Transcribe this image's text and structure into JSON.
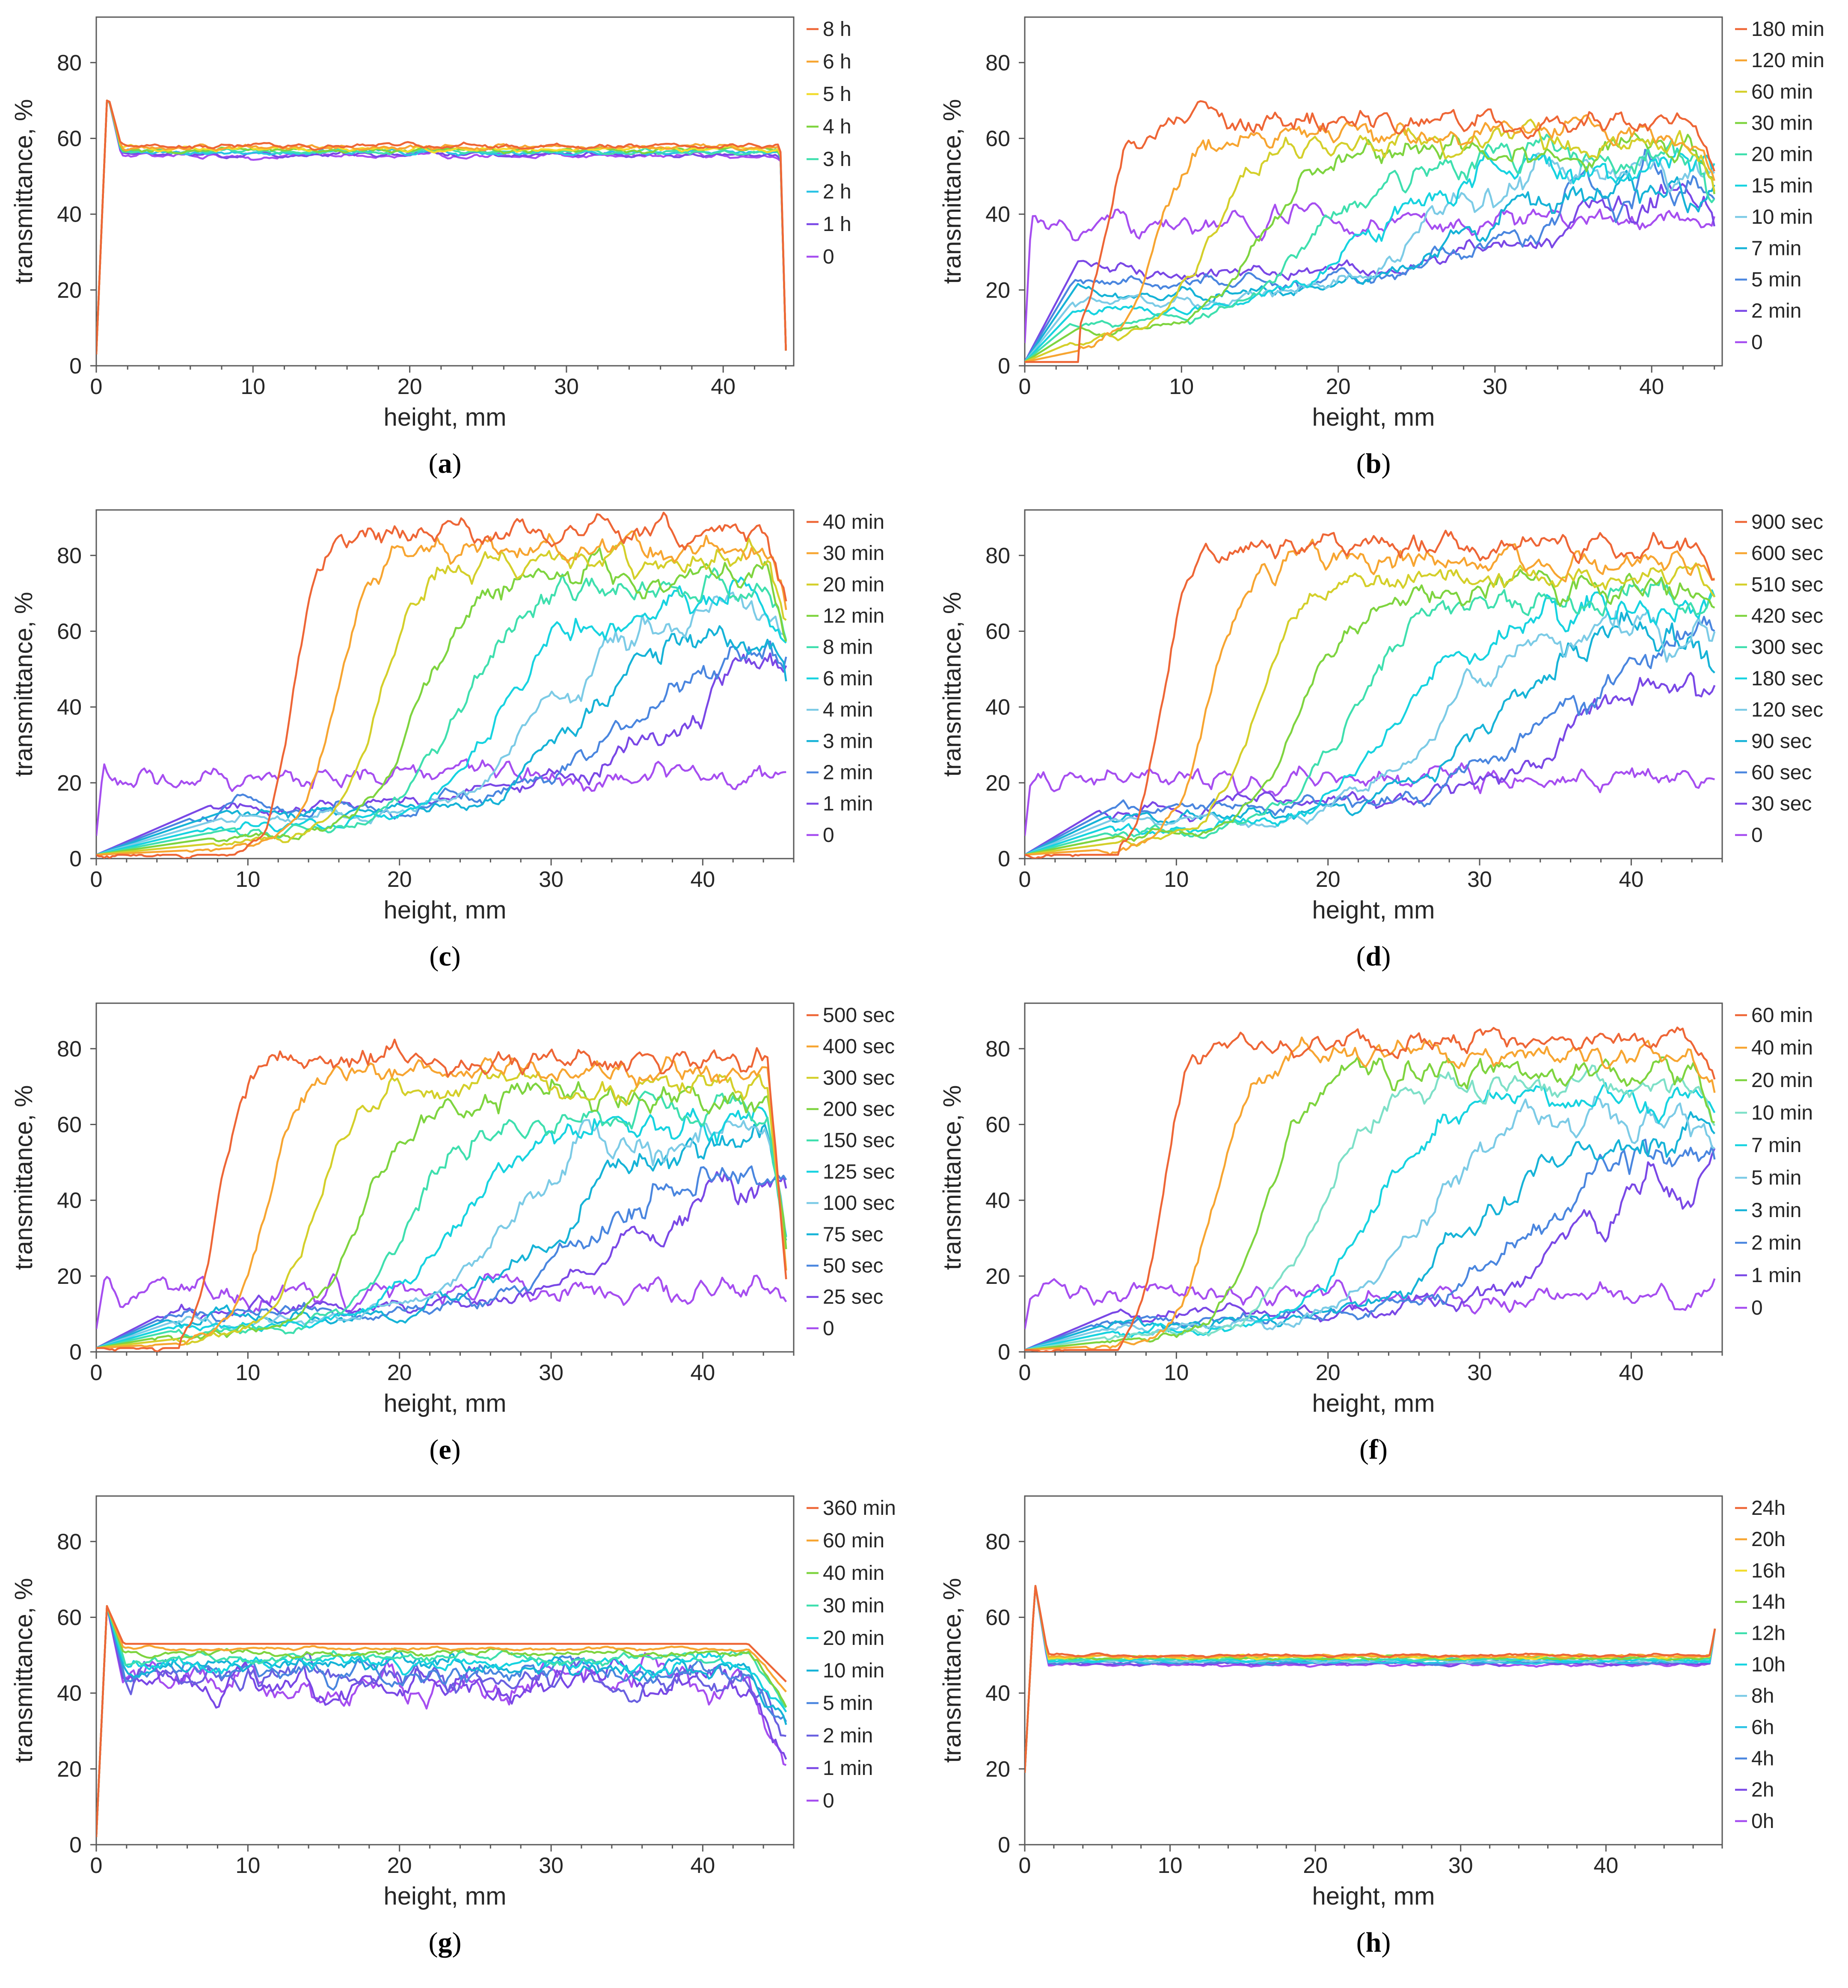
{
  "chart_data": [
    {
      "panel": "a",
      "caption": {
        "open": "(",
        "letter": "a",
        "close": ")"
      },
      "type": "line",
      "xlabel": "height, mm",
      "ylabel": "transmittance, %",
      "xlim": [
        0,
        44.5
      ],
      "ylim": [
        0,
        92
      ],
      "xticks": [
        "0",
        "10",
        "20",
        "30",
        "40"
      ],
      "yticks": [
        "0",
        "20",
        "40",
        "60",
        "80"
      ],
      "profile": {
        "kind": "flat",
        "H": 44,
        "peak": 72,
        "plateau": 58,
        "noise": 0.8
      },
      "series": [
        {
          "name": "8 h",
          "color": "#ee6636"
        },
        {
          "name": "6 h",
          "color": "#f7a531"
        },
        {
          "name": "5 h",
          "color": "#f2dc2c"
        },
        {
          "name": "4 h",
          "color": "#7ed43f"
        },
        {
          "name": "3 h",
          "color": "#3fdfae"
        },
        {
          "name": "2 h",
          "color": "#29c3e5"
        },
        {
          "name": "1 h",
          "color": "#7a48e6"
        },
        {
          "name": "0",
          "color": "#a64ef0"
        }
      ]
    },
    {
      "panel": "b",
      "caption": {
        "open": "(",
        "letter": "b",
        "close": ")"
      },
      "type": "line",
      "xlabel": "height, mm",
      "ylabel": "transmittance, %",
      "xlim": [
        0,
        44.5
      ],
      "ylim": [
        0,
        92
      ],
      "xticks": [
        "0",
        "10",
        "20",
        "30",
        "40"
      ],
      "yticks": [
        "0",
        "20",
        "40",
        "60",
        "80"
      ],
      "profile": {
        "kind": "settling",
        "H": 44,
        "top": 64,
        "low": 38,
        "noise": 4,
        "bottomFloor": 1,
        "topDrop": 12
      },
      "series": [
        {
          "name": "180 min",
          "color": "#ee6636"
        },
        {
          "name": "120 min",
          "color": "#f7a531"
        },
        {
          "name": "60 min",
          "color": "#d4cf2a"
        },
        {
          "name": "30 min",
          "color": "#7ed43f"
        },
        {
          "name": "20 min",
          "color": "#3fdfae"
        },
        {
          "name": "15 min",
          "color": "#17d3e0"
        },
        {
          "name": "10 min",
          "color": "#7ccbe6"
        },
        {
          "name": "7 min",
          "color": "#16b3d7"
        },
        {
          "name": "5 min",
          "color": "#4a86df"
        },
        {
          "name": "2 min",
          "color": "#7a48e6"
        },
        {
          "name": "0",
          "color": "#a64ef0"
        }
      ]
    },
    {
      "panel": "c",
      "caption": {
        "open": "(",
        "letter": "c",
        "close": ")"
      },
      "type": "line",
      "xlabel": "height, mm",
      "ylabel": "transmittance, %",
      "xlim": [
        0,
        46
      ],
      "ylim": [
        0,
        92
      ],
      "xticks": [
        "0",
        "10",
        "20",
        "30",
        "40"
      ],
      "yticks": [
        "0",
        "20",
        "40",
        "60",
        "80"
      ],
      "profile": {
        "kind": "settling",
        "H": 45.5,
        "top": 86,
        "low": 22,
        "noise": 4,
        "bottomFloor": 1,
        "topDrop": 20,
        "frontStart": 13
      },
      "series": [
        {
          "name": "40 min",
          "color": "#ee6636"
        },
        {
          "name": "30 min",
          "color": "#f7a531"
        },
        {
          "name": "20 min",
          "color": "#d4cf2a"
        },
        {
          "name": "12 min",
          "color": "#7ed43f"
        },
        {
          "name": "8 min",
          "color": "#3fdfae"
        },
        {
          "name": "6 min",
          "color": "#17d3e0"
        },
        {
          "name": "4 min",
          "color": "#7ccbe6"
        },
        {
          "name": "3 min",
          "color": "#16b3d7"
        },
        {
          "name": "2 min",
          "color": "#4a86df"
        },
        {
          "name": "1 min",
          "color": "#7a48e6"
        },
        {
          "name": "0",
          "color": "#a64ef0"
        }
      ]
    },
    {
      "panel": "d",
      "caption": {
        "open": "(",
        "letter": "d",
        "close": ")"
      },
      "type": "line",
      "xlabel": "height, mm",
      "ylabel": "transmittance, %",
      "xlim": [
        0,
        46
      ],
      "ylim": [
        0,
        92
      ],
      "xticks": [
        "0",
        "10",
        "20",
        "30",
        "40"
      ],
      "yticks": [
        "0",
        "20",
        "40",
        "60",
        "80"
      ],
      "profile": {
        "kind": "settling",
        "H": 45.5,
        "top": 82,
        "low": 21,
        "noise": 4,
        "bottomFloor": 1,
        "topDrop": 8,
        "frontStart": 9
      },
      "series": [
        {
          "name": "900 sec",
          "color": "#ee6636"
        },
        {
          "name": "600 sec",
          "color": "#f7a531"
        },
        {
          "name": "510 sec",
          "color": "#d4cf2a"
        },
        {
          "name": "420 sec",
          "color": "#7ed43f"
        },
        {
          "name": "300 sec",
          "color": "#3fdfae"
        },
        {
          "name": "180 sec",
          "color": "#17d3e0"
        },
        {
          "name": "120 sec",
          "color": "#7ccbe6"
        },
        {
          "name": "90 sec",
          "color": "#16b3d7"
        },
        {
          "name": "60 sec",
          "color": "#4a86df"
        },
        {
          "name": "30 sec",
          "color": "#7a48e6"
        },
        {
          "name": "0",
          "color": "#a64ef0"
        }
      ]
    },
    {
      "panel": "e",
      "caption": {
        "open": "(",
        "letter": "e",
        "close": ")"
      },
      "type": "line",
      "xlabel": "height, mm",
      "ylabel": "transmittance, %",
      "xlim": [
        0,
        46
      ],
      "ylim": [
        0,
        92
      ],
      "xticks": [
        "0",
        "10",
        "20",
        "30",
        "40"
      ],
      "yticks": [
        "0",
        "20",
        "40",
        "60",
        "80"
      ],
      "profile": {
        "kind": "settling",
        "H": 45.5,
        "top": 77,
        "low": 16,
        "noise": 4,
        "bottomFloor": 1,
        "topDrop": 60,
        "frontStart": 8
      },
      "series": [
        {
          "name": "500 sec",
          "color": "#ee6636"
        },
        {
          "name": "400 sec",
          "color": "#f7a531"
        },
        {
          "name": "300 sec",
          "color": "#d4cf2a"
        },
        {
          "name": "200 sec",
          "color": "#7ed43f"
        },
        {
          "name": "150 sec",
          "color": "#3fdfae"
        },
        {
          "name": "125 sec",
          "color": "#17d3e0"
        },
        {
          "name": "100 sec",
          "color": "#7ccbe6"
        },
        {
          "name": "75 sec",
          "color": "#16b3d7"
        },
        {
          "name": "50 sec",
          "color": "#4a86df"
        },
        {
          "name": "25 sec",
          "color": "#7a48e6"
        },
        {
          "name": "0",
          "color": "#a64ef0"
        }
      ]
    },
    {
      "panel": "f",
      "caption": {
        "open": "(",
        "letter": "f",
        "close": ")"
      },
      "type": "line",
      "xlabel": "height, mm",
      "ylabel": "transmittance, %",
      "xlim": [
        0,
        46
      ],
      "ylim": [
        0,
        92
      ],
      "xticks": [
        "0",
        "10",
        "20",
        "30",
        "40"
      ],
      "yticks": [
        "0",
        "20",
        "40",
        "60",
        "80"
      ],
      "profile": {
        "kind": "settling",
        "H": 45.5,
        "top": 82,
        "low": 15,
        "noise": 4,
        "bottomFloor": 0.5,
        "topDrop": 10,
        "frontStart": 9
      },
      "series": [
        {
          "name": "60 min",
          "color": "#ee6636"
        },
        {
          "name": "40 min",
          "color": "#f7a531"
        },
        {
          "name": "20 min",
          "color": "#7ed43f"
        },
        {
          "name": "10 min",
          "color": "#7ee0c8"
        },
        {
          "name": "7 min",
          "color": "#17d3e0"
        },
        {
          "name": "5 min",
          "color": "#7ccbe6"
        },
        {
          "name": "3 min",
          "color": "#16b3d7"
        },
        {
          "name": "2 min",
          "color": "#4a86df"
        },
        {
          "name": "1 min",
          "color": "#7a48e6"
        },
        {
          "name": "0",
          "color": "#a64ef0"
        }
      ]
    },
    {
      "panel": "g",
      "caption": {
        "open": "(",
        "letter": "g",
        "close": ")"
      },
      "type": "line",
      "xlabel": "height, mm",
      "ylabel": "transmittance, %",
      "xlim": [
        0,
        46
      ],
      "ylim": [
        0,
        92
      ],
      "xticks": [
        "0",
        "10",
        "20",
        "30",
        "40"
      ],
      "yticks": [
        "0",
        "20",
        "40",
        "60",
        "80"
      ],
      "profile": {
        "kind": "decay",
        "H": 45.5,
        "peak": 63,
        "plateau": 53,
        "low": 42,
        "noise": 3
      },
      "series": [
        {
          "name": "360 min",
          "color": "#ee6636"
        },
        {
          "name": "60 min",
          "color": "#f7a531"
        },
        {
          "name": "40 min",
          "color": "#7ed43f"
        },
        {
          "name": "30 min",
          "color": "#3fdfae"
        },
        {
          "name": "20 min",
          "color": "#17d3e0"
        },
        {
          "name": "10 min",
          "color": "#16b3d7"
        },
        {
          "name": "5 min",
          "color": "#4a86df"
        },
        {
          "name": "2 min",
          "color": "#6a60e0"
        },
        {
          "name": "1 min",
          "color": "#7a48e6"
        },
        {
          "name": "0",
          "color": "#a64ef0"
        }
      ]
    },
    {
      "panel": "h",
      "caption": {
        "open": "(",
        "letter": "h",
        "close": ")"
      },
      "type": "line",
      "xlabel": "height, mm",
      "ylabel": "transmittance, %",
      "xlim": [
        0,
        48
      ],
      "ylim": [
        0,
        92
      ],
      "xticks": [
        "0",
        "10",
        "20",
        "30",
        "40"
      ],
      "yticks": [
        "0",
        "20",
        "40",
        "60",
        "80"
      ],
      "profile": {
        "kind": "flat",
        "H": 47.5,
        "peak": 69,
        "plateau": 50,
        "noise": 0.5,
        "startVal": 19,
        "endRise": 57
      },
      "series": [
        {
          "name": "24h",
          "color": "#ee6636"
        },
        {
          "name": "20h",
          "color": "#f7a531"
        },
        {
          "name": "16h",
          "color": "#f2dc2c"
        },
        {
          "name": "14h",
          "color": "#7ed43f"
        },
        {
          "name": "12h",
          "color": "#3fdfae"
        },
        {
          "name": "10h",
          "color": "#17d3e0"
        },
        {
          "name": "8h",
          "color": "#7ccbe6"
        },
        {
          "name": "6h",
          "color": "#29c3e5"
        },
        {
          "name": "4h",
          "color": "#4a86df"
        },
        {
          "name": "2h",
          "color": "#7a48e6"
        },
        {
          "name": "0h",
          "color": "#a64ef0"
        }
      ]
    }
  ]
}
